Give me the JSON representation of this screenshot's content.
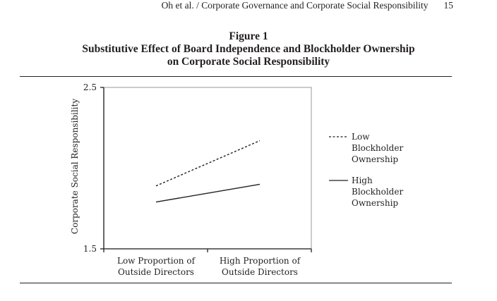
{
  "running_header": {
    "text": "Oh et al. / Corporate Governance and Corporate Social Responsibility",
    "page_number": "15"
  },
  "figure": {
    "label": "Figure 1",
    "title_line1": "Substitutive Effect of Board Independence and Blockholder Ownership",
    "title_line2": "on Corporate Social Responsibility"
  },
  "chart_data": {
    "type": "line",
    "title": "Figure 1 Substitutive Effect of Board Independence and Blockholder Ownership on Corporate Social Responsibility",
    "xlabel": "",
    "ylabel": "Corporate Social Responsibility",
    "categories": [
      "Low Proportion of Outside Directors",
      "High Proportion of Outside Directors"
    ],
    "category_lines": [
      [
        "Low Proportion of",
        "Outside Directors"
      ],
      [
        "High Proportion of",
        "Outside Directors"
      ]
    ],
    "ylim": [
      1.5,
      2.5
    ],
    "y_ticks": [
      "2.5",
      "1.5"
    ],
    "grid": false,
    "legend_position": "right",
    "series": [
      {
        "name": "Low Blockholder Ownership",
        "name_lines": [
          "Low",
          "Blockholder",
          "Ownership"
        ],
        "values": [
          1.89,
          2.17
        ],
        "line_style": "dashed",
        "color": "#231f20"
      },
      {
        "name": "High Blockholder Ownership",
        "name_lines": [
          "High",
          "Blockholder",
          "Ownership"
        ],
        "values": [
          1.79,
          1.9
        ],
        "line_style": "solid",
        "color": "#231f20"
      }
    ]
  }
}
